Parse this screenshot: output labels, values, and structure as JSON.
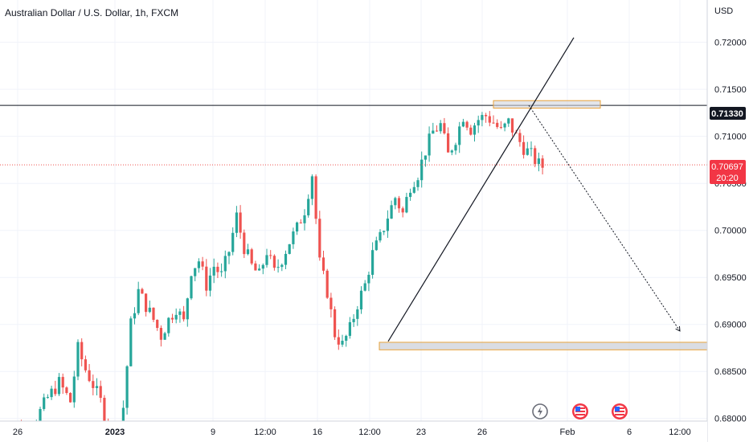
{
  "chart_data": {
    "type": "candlestick",
    "title": "Australian Dollar / U.S. Dollar, 1h, FXCM",
    "currency": "USD",
    "y_ticks": [
      "0.72000",
      "0.71500",
      "0.71000",
      "0.70500",
      "0.70000",
      "0.69500",
      "0.69000",
      "0.68500",
      "0.68000"
    ],
    "ylim": [
      0.6775,
      0.7245
    ],
    "x_ticks": [
      {
        "label": "26",
        "bold": false
      },
      {
        "label": "2023",
        "bold": true
      },
      {
        "label": "9",
        "bold": false
      },
      {
        "label": "12:00",
        "bold": false
      },
      {
        "label": "16",
        "bold": false
      },
      {
        "label": "12:00",
        "bold": false
      },
      {
        "label": "23",
        "bold": false
      },
      {
        "label": "26",
        "bold": false
      },
      {
        "label": "Feb",
        "bold": false
      },
      {
        "label": "6",
        "bold": false
      },
      {
        "label": "12:00",
        "bold": false
      }
    ],
    "horizontal_line_price": "0.71330",
    "last_price": "0.70697",
    "countdown": "20:20",
    "resistance_zone": [
      0.713,
      0.7138
    ],
    "support_zone": [
      0.6873,
      0.6881
    ],
    "projection_target": 0.6893,
    "trend_line": [
      0.6882,
      0.7205
    ],
    "price_path": [
      [
        0,
        0.678
      ],
      [
        3,
        0.6792
      ],
      [
        6,
        0.6786
      ],
      [
        9,
        0.68
      ],
      [
        12,
        0.6822
      ],
      [
        15,
        0.6838
      ],
      [
        18,
        0.6818
      ],
      [
        20,
        0.6874
      ],
      [
        22,
        0.6852
      ],
      [
        24,
        0.6836
      ],
      [
        26,
        0.6818
      ],
      [
        28,
        0.679
      ],
      [
        30,
        0.678
      ],
      [
        32,
        0.6812
      ],
      [
        34,
        0.69
      ],
      [
        36,
        0.6935
      ],
      [
        38,
        0.692
      ],
      [
        40,
        0.6905
      ],
      [
        42,
        0.6888
      ],
      [
        44,
        0.6905
      ],
      [
        46,
        0.6918
      ],
      [
        48,
        0.6902
      ],
      [
        50,
        0.6958
      ],
      [
        52,
        0.6968
      ],
      [
        54,
        0.6942
      ],
      [
        56,
        0.6962
      ],
      [
        58,
        0.6952
      ],
      [
        60,
        0.6978
      ],
      [
        62,
        0.7015
      ],
      [
        64,
        0.6982
      ],
      [
        66,
        0.6962
      ],
      [
        68,
        0.6952
      ],
      [
        70,
        0.6978
      ],
      [
        72,
        0.6955
      ],
      [
        74,
        0.697
      ],
      [
        76,
        0.6988
      ],
      [
        78,
        0.7002
      ],
      [
        80,
        0.7022
      ],
      [
        82,
        0.706
      ],
      [
        84,
        0.6965
      ],
      [
        86,
        0.6935
      ],
      [
        88,
        0.689
      ],
      [
        90,
        0.6878
      ],
      [
        92,
        0.6895
      ],
      [
        94,
        0.6922
      ],
      [
        96,
        0.6942
      ],
      [
        98,
        0.6975
      ],
      [
        100,
        0.6992
      ],
      [
        102,
        0.7015
      ],
      [
        104,
        0.7035
      ],
      [
        106,
        0.7018
      ],
      [
        108,
        0.7048
      ],
      [
        110,
        0.706
      ],
      [
        112,
        0.7085
      ],
      [
        114,
        0.7105
      ],
      [
        116,
        0.7112
      ],
      [
        118,
        0.708
      ],
      [
        120,
        0.7098
      ],
      [
        122,
        0.7122
      ],
      [
        124,
        0.7108
      ],
      [
        126,
        0.7118
      ],
      [
        128,
        0.7122
      ],
      [
        130,
        0.7115
      ],
      [
        132,
        0.7105
      ],
      [
        134,
        0.7115
      ],
      [
        136,
        0.71
      ],
      [
        138,
        0.7088
      ],
      [
        140,
        0.708
      ],
      [
        142,
        0.707
      ],
      [
        143,
        0.7068
      ]
    ]
  },
  "icons": {
    "flash": "lightning-icon",
    "event1": "us-flag-icon",
    "event2": "us-flag-icon"
  },
  "colors": {
    "up": "#26a69a",
    "down": "#ef5350",
    "zone_border": "#e8a23a",
    "zone_fill": "#d1d4dc",
    "badge_black": "#131722",
    "badge_red": "#f23645",
    "grid": "#f0f3fa"
  }
}
